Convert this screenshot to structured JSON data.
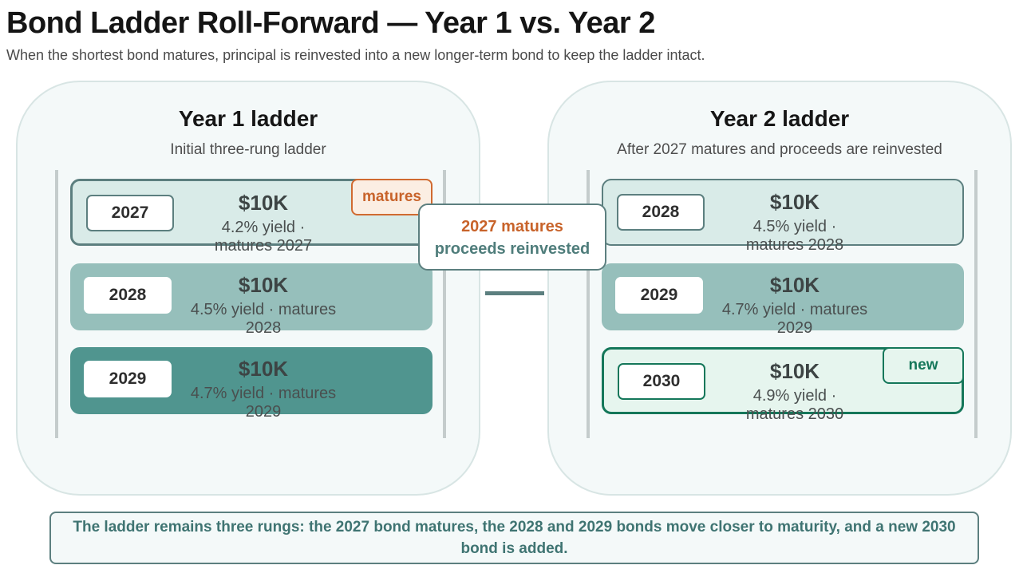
{
  "header": {
    "title": "Bond Ladder Roll-Forward — Year 1 vs. Year 2",
    "subtitle": "When the shortest bond matures, principal is reinvested into a new longer-term bond to keep the ladder intact."
  },
  "left_panel": {
    "title": "Year 1 ladder",
    "subtitle": "Initial three-rung ladder",
    "rungs": [
      {
        "year": "2027",
        "amount": "$10K",
        "detail": "4.2% yield · matures 2027",
        "tag": "matures"
      },
      {
        "year": "2028",
        "amount": "$10K",
        "detail": "4.5% yield · matures 2028"
      },
      {
        "year": "2029",
        "amount": "$10K",
        "detail": "4.7% yield · matures 2029"
      }
    ]
  },
  "callout": {
    "line1": "2027 matures",
    "line2": "proceeds reinvested"
  },
  "right_panel": {
    "title": "Year 2 ladder",
    "subtitle": "After 2027 matures and proceeds are reinvested",
    "rungs": [
      {
        "year": "2028",
        "amount": "$10K",
        "detail": "4.5% yield · matures 2028"
      },
      {
        "year": "2029",
        "amount": "$10K",
        "detail": "4.7% yield · matures 2029"
      },
      {
        "year": "2030",
        "amount": "$10K",
        "detail": "4.9% yield · matures 2030",
        "tag": "new"
      }
    ]
  },
  "footer": {
    "text": "The ladder remains three rungs: the 2027 bond matures, the 2028 and 2029 bonds move closer to maturity, and a new 2030 bond is added."
  },
  "colors": {
    "matures_accent": "#c8632a",
    "new_accent": "#15775a",
    "teal_dark": "#50958f",
    "teal_mid": "#96bfbb",
    "teal_light": "#d9ebe8",
    "outline": "#5c7f7f"
  }
}
